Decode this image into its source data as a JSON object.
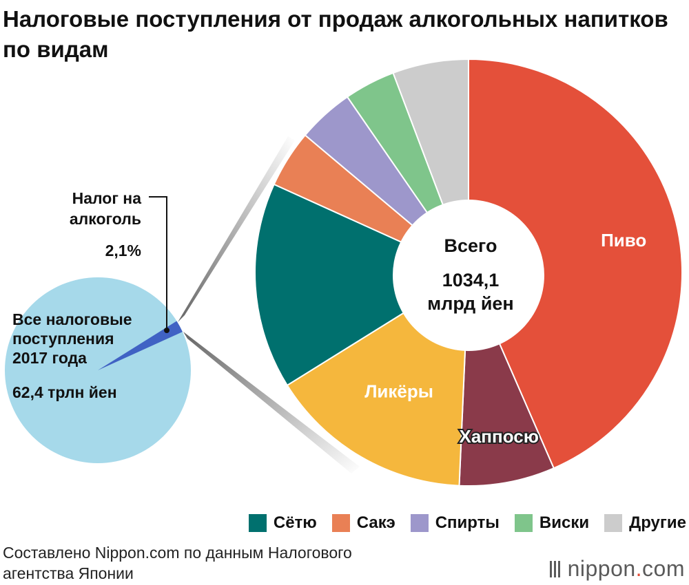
{
  "title": "Налоговые поступления от продаж алкогольных напитков по видам",
  "small_pie": {
    "callout": [
      "Налог на",
      "алкоголь"
    ],
    "callout_pct": "2,1%",
    "label_lines": [
      "Все налоговые",
      "поступления",
      "2017 года"
    ],
    "label_value": "62,4 трлн йен",
    "colors": {
      "base": "#a6d9ea",
      "slice": "#4062c4"
    }
  },
  "center_label": {
    "line1": "Всего",
    "line2": "1034,1",
    "line3": "млрд йен"
  },
  "legend": [
    {
      "label": "Сётю",
      "color": "#00706e"
    },
    {
      "label": "Сакэ",
      "color": "#e98055"
    },
    {
      "label": "Спирты",
      "color": "#9d97cb"
    },
    {
      "label": "Виски",
      "color": "#7fc58b"
    },
    {
      "label": "Другие",
      "color": "#cccccc"
    }
  ],
  "source": [
    "Составлено Nippon.com по данным Налогового",
    "агентства Японии"
  ],
  "logo": {
    "prefix": "nippon",
    "dot": ".",
    "suffix": "com"
  },
  "chart_data": [
    {
      "type": "pie",
      "title": "Все налоговые поступления 2017 года",
      "total": "62,4 трлн йен",
      "slices": [
        {
          "name": "Налог на алкоголь",
          "value": 2.1,
          "color": "#4062c4"
        },
        {
          "name": "",
          "value": 97.9,
          "color": "#a6d9ea"
        }
      ]
    },
    {
      "type": "pie",
      "title": "Всего 1034,1 млрд йен",
      "total": "1034,1 млрд йен",
      "slices": [
        {
          "name": "Пиво",
          "value": 43.9,
          "color": "#e4503a",
          "label": "Пиво"
        },
        {
          "name": "Хаппосю",
          "value": 7.3,
          "color": "#8a3a4a",
          "label": "Хаппосю"
        },
        {
          "name": "Ликёры",
          "value": 15.6,
          "color": "#f5b73d",
          "label": "Ликёры"
        },
        {
          "name": "Сётю",
          "value": 15.8,
          "color": "#00706e"
        },
        {
          "name": "Сакэ",
          "value": 4.4,
          "color": "#e98055"
        },
        {
          "name": "Спирты",
          "value": 4.3,
          "color": "#9d97cb"
        },
        {
          "name": "Виски",
          "value": 3.9,
          "color": "#7fc58b"
        },
        {
          "name": "Другие",
          "value": 5.8,
          "color": "#cccccc"
        }
      ]
    }
  ]
}
